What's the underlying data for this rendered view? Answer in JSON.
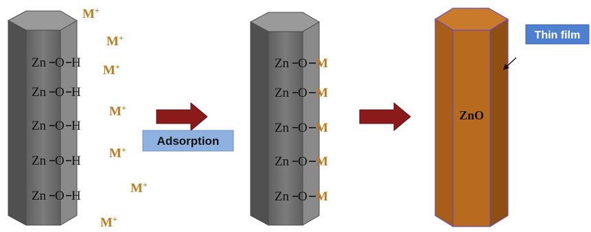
{
  "colors": {
    "rod_front": "#6e6e6e",
    "rod_left": "#5a5a5a",
    "rod_right": "#7a7a7a",
    "rod_top": "#8f8f8f",
    "rod_edge": "#4a4a4a",
    "ion": "#c07a1e",
    "arrow": "#8b1a1a",
    "arrow_edge": "#5e0e0e",
    "label_box": "#8fb1e0",
    "label_box_dark": "#4f7fcf",
    "zno_front": "#b86b1f",
    "zno_side": "#8f4f12",
    "zno_top": "#c97a2b",
    "zno_edge": "#6a4fb0"
  },
  "rod1": {
    "bonds": [
      {
        "zn": "Zn",
        "o": "O",
        "end": "H"
      },
      {
        "zn": "Zn",
        "o": "O",
        "end": "H"
      },
      {
        "zn": "Zn",
        "o": "O",
        "end": "H"
      },
      {
        "zn": "Zn",
        "o": "O",
        "end": "H"
      },
      {
        "zn": "Zn",
        "o": "O",
        "end": "H"
      }
    ]
  },
  "ions": [
    {
      "symbol": "M",
      "charge": "+"
    },
    {
      "symbol": "M",
      "charge": "+"
    },
    {
      "symbol": "M",
      "charge": "+"
    },
    {
      "symbol": "M",
      "charge": "+"
    },
    {
      "symbol": "M",
      "charge": "+"
    },
    {
      "symbol": "M",
      "charge": "+"
    },
    {
      "symbol": "M",
      "charge": "+"
    }
  ],
  "step_label": "Adsorption",
  "rod2": {
    "bonds": [
      {
        "zn": "Zn",
        "o": "O",
        "end": "M"
      },
      {
        "zn": "Zn",
        "o": "O",
        "end": "M"
      },
      {
        "zn": "Zn",
        "o": "O",
        "end": "M"
      },
      {
        "zn": "Zn",
        "o": "O",
        "end": "M"
      },
      {
        "zn": "Zn",
        "o": "O",
        "end": "M"
      }
    ]
  },
  "rod3": {
    "label": "ZnO",
    "film_label": "Thin film"
  }
}
